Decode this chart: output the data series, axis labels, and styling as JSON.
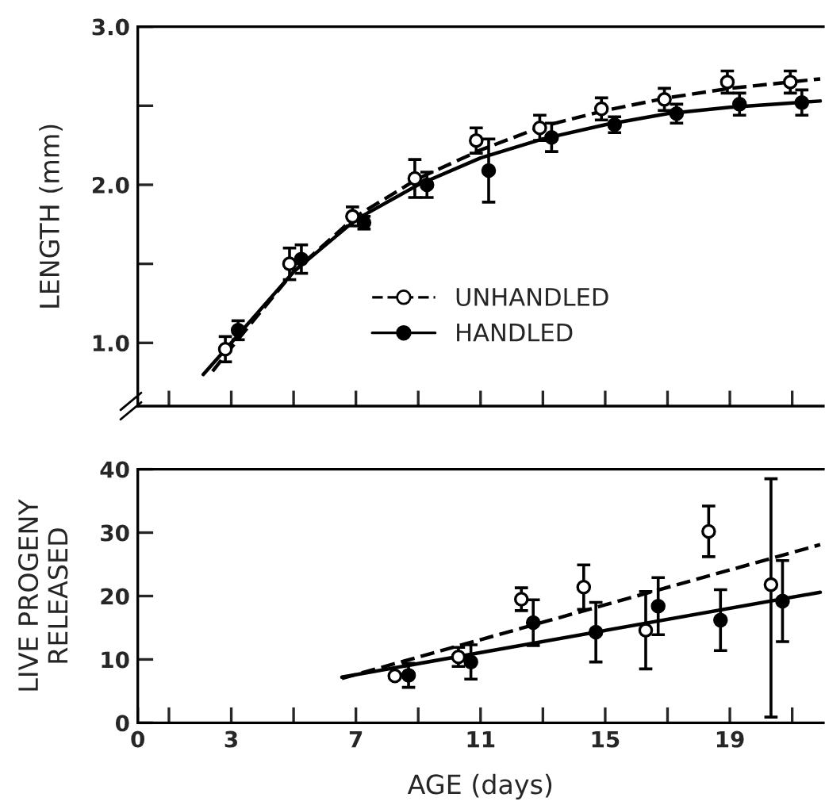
{
  "chart_data": [
    {
      "type": "scatter",
      "ylabel": "LENGTH (mm)",
      "xlim": [
        0,
        22
      ],
      "ylim": [
        0.6,
        3.0
      ],
      "xticks": [
        {
          "value": 1,
          "label": null
        },
        {
          "value": 3,
          "label": null
        },
        {
          "value": 5,
          "label": null
        },
        {
          "value": 7,
          "label": null
        },
        {
          "value": 9,
          "label": null
        },
        {
          "value": 11,
          "label": null
        },
        {
          "value": 13,
          "label": null
        },
        {
          "value": 15,
          "label": null
        },
        {
          "value": 17,
          "label": null
        },
        {
          "value": 19,
          "label": null
        },
        {
          "value": 21,
          "label": null
        }
      ],
      "yticks": [
        {
          "value": 1.0,
          "label": "1.0"
        },
        {
          "value": 1.5,
          "label": null
        },
        {
          "value": 2.0,
          "label": "2.0"
        },
        {
          "value": 2.5,
          "label": null
        },
        {
          "value": 3.0,
          "label": "3.0"
        }
      ],
      "tick_labels": "y",
      "legend": "bottom right",
      "grid": false,
      "series": [
        {
          "name": "UNHANDLED",
          "marker": "circle",
          "color": "#ffffff",
          "line_style": "dashed",
          "x": [
            2.81,
            4.87,
            6.89,
            8.89,
            10.86,
            12.9,
            14.88,
            16.9,
            18.92,
            20.94
          ],
          "values": [
            0.96,
            1.5,
            1.8,
            2.04,
            2.28,
            2.36,
            2.48,
            2.54,
            2.65,
            2.65
          ],
          "errors": [
            0.08,
            0.1,
            0.06,
            0.12,
            0.08,
            0.08,
            0.07,
            0.07,
            0.07,
            0.07
          ]
        },
        {
          "name": "HANDLED",
          "marker": "circle",
          "color": "#000000",
          "line_style": "solid",
          "x": [
            3.22,
            5.25,
            7.26,
            9.28,
            11.26,
            13.28,
            15.3,
            17.29,
            19.31,
            21.31
          ],
          "values": [
            1.08,
            1.53,
            1.76,
            2.0,
            2.09,
            2.3,
            2.38,
            2.45,
            2.51,
            2.52
          ],
          "errors": [
            0.06,
            0.09,
            0.04,
            0.08,
            0.2,
            0.09,
            0.05,
            0.06,
            0.07,
            0.08
          ]
        },
        {
          "type": "line",
          "color": "#000000",
          "line_style": "dashed",
          "x": [
            2.4,
            3,
            5,
            7,
            9,
            11,
            13,
            15,
            17,
            19,
            21.9
          ],
          "values": [
            0.82,
            0.97,
            1.45,
            1.8,
            2.04,
            2.22,
            2.37,
            2.47,
            2.55,
            2.61,
            2.67
          ]
        },
        {
          "type": "line",
          "color": "#000000",
          "line_style": "solid",
          "x": [
            2.1,
            3,
            5,
            7,
            9,
            11,
            13,
            15,
            17,
            19,
            21.9
          ],
          "values": [
            0.8,
            1.0,
            1.45,
            1.78,
            2.0,
            2.17,
            2.29,
            2.38,
            2.45,
            2.49,
            2.53
          ]
        }
      ]
    },
    {
      "type": "scatter",
      "ylabel": "LIVE PROGENY\nRELEASED",
      "xlabel": "AGE (days)",
      "xlim": [
        0,
        22
      ],
      "ylim": [
        0,
        40
      ],
      "xticks": [
        {
          "value": 0,
          "label": "0"
        },
        {
          "value": 1,
          "label": null
        },
        {
          "value": 3,
          "label": "3"
        },
        {
          "value": 5,
          "label": null
        },
        {
          "value": 7,
          "label": "7"
        },
        {
          "value": 9,
          "label": null
        },
        {
          "value": 11,
          "label": "11"
        },
        {
          "value": 13,
          "label": null
        },
        {
          "value": 15,
          "label": "15"
        },
        {
          "value": 17,
          "label": null
        },
        {
          "value": 19,
          "label": "19"
        },
        {
          "value": 21,
          "label": null
        }
      ],
      "yticks": [
        0,
        10,
        20,
        30,
        40
      ],
      "grid": false,
      "series": [
        {
          "marker": "circle",
          "color": "#ffffff",
          "x": [
            8.25,
            10.29,
            12.31,
            14.31,
            16.3,
            18.32,
            20.32
          ],
          "values": [
            7.4,
            10.4,
            19.5,
            21.4,
            14.6,
            30.2,
            21.8
          ],
          "errors": [
            null,
            1.5,
            1.8,
            3.5,
            6.1,
            4.0,
            [
              0.9,
              38.5
            ]
          ]
        },
        {
          "marker": "circle",
          "color": "#000000",
          "x": [
            8.69,
            10.69,
            12.69,
            14.7,
            16.7,
            18.7,
            20.69
          ],
          "values": [
            7.5,
            9.6,
            15.8,
            14.3,
            18.4,
            16.2,
            19.2
          ],
          "errors": [
            1.9,
            2.7,
            3.6,
            4.7,
            4.5,
            4.8,
            6.4
          ]
        },
        {
          "type": "line",
          "color": "#000000",
          "line_style": "dashed",
          "x": [
            6.55,
            21.9
          ],
          "values": [
            7.0,
            28.1
          ]
        },
        {
          "type": "line",
          "color": "#000000",
          "line_style": "solid",
          "x": [
            6.55,
            21.9
          ],
          "values": [
            7.2,
            20.6
          ]
        }
      ]
    }
  ]
}
